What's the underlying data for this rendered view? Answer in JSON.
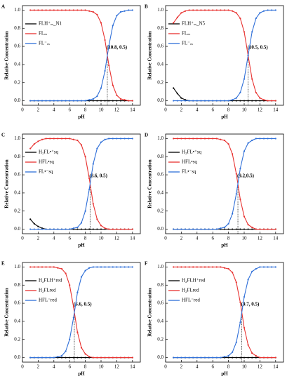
{
  "chart_data": [
    {
      "type": "line",
      "label": "A",
      "xlabel": "pH",
      "ylabel": "Relative Concentration",
      "xlim": [
        0,
        15
      ],
      "ylim": [
        -0.05,
        1.05
      ],
      "xticks": [
        0,
        2,
        4,
        6,
        8,
        10,
        12,
        14
      ],
      "yticks": [
        {
          "value": 0,
          "label": "0.0"
        },
        {
          "value": 0.2,
          "label": "0.2"
        },
        {
          "value": 0.4,
          "label": "0.4"
        },
        {
          "value": 0.6,
          "label": "0.6"
        },
        {
          "value": 0.8,
          "label": "0.8"
        },
        {
          "value": 1,
          "label": "1.0"
        }
      ],
      "annotation": {
        "text": "(10.8, 0.5)",
        "x": 10.8,
        "y": 0.5
      },
      "x": [
        1,
        1.5,
        2,
        2.5,
        3,
        3.5,
        4,
        4.5,
        5,
        5.5,
        6,
        6.5,
        7,
        7.5,
        8,
        8.5,
        9,
        9.5,
        10,
        10.5,
        11,
        11.5,
        12,
        12.5,
        13,
        13.5,
        14
      ],
      "series": [
        {
          "name": "FLH⁺ₒₓ_N1",
          "color": "#000000",
          "values": [
            0,
            0,
            0,
            0,
            0,
            0,
            0,
            0,
            0,
            0,
            0,
            0,
            0,
            0,
            0,
            0,
            0,
            0,
            0,
            0,
            0,
            0,
            0,
            0,
            0,
            0,
            0
          ]
        },
        {
          "name": "FLₒₓ",
          "color": "#e8312f",
          "values": [
            1,
            1,
            1,
            1,
            1,
            1,
            1,
            1,
            1,
            1,
            1,
            1,
            1,
            1,
            1,
            0.99,
            0.98,
            0.95,
            0.86,
            0.67,
            0.39,
            0.17,
            0.06,
            0.02,
            0.01,
            0,
            0
          ]
        },
        {
          "name": "FL⁻ₒₓ",
          "color": "#2f6fd8",
          "values": [
            0,
            0,
            0,
            0,
            0,
            0,
            0,
            0,
            0,
            0,
            0,
            0,
            0,
            0,
            0,
            0.01,
            0.02,
            0.05,
            0.14,
            0.33,
            0.61,
            0.83,
            0.94,
            0.98,
            0.99,
            1,
            1
          ]
        }
      ]
    },
    {
      "type": "line",
      "label": "B",
      "xlabel": "pH",
      "ylabel": "Relative Concentration",
      "xlim": [
        0,
        15
      ],
      "ylim": [
        -0.05,
        1.05
      ],
      "xticks": [
        0,
        2,
        4,
        6,
        8,
        10,
        12,
        14
      ],
      "yticks": [
        {
          "value": 0,
          "label": "0.0"
        },
        {
          "value": 0.2,
          "label": "0.2"
        },
        {
          "value": 0.4,
          "label": "0.4"
        },
        {
          "value": 0.6,
          "label": "0.6"
        },
        {
          "value": 0.8,
          "label": "0.8"
        },
        {
          "value": 1,
          "label": "1.0"
        }
      ],
      "annotation": {
        "text": "(10.5, 0.5)",
        "x": 10.5,
        "y": 0.5
      },
      "x": [
        1,
        1.5,
        2,
        2.5,
        3,
        3.5,
        4,
        4.5,
        5,
        5.5,
        6,
        6.5,
        7,
        7.5,
        8,
        8.5,
        9,
        9.5,
        10,
        10.5,
        11,
        11.5,
        12,
        12.5,
        13,
        13.5,
        14
      ],
      "series": [
        {
          "name": "FLH⁺ₒₓ_N5",
          "color": "#000000",
          "values": [
            0.14,
            0.08,
            0.03,
            0.01,
            0,
            0,
            0,
            0,
            0,
            0,
            0,
            0,
            0,
            0,
            0,
            0,
            0,
            0,
            0,
            0,
            0,
            0,
            0,
            0,
            0,
            0,
            0
          ]
        },
        {
          "name": "FLₒₓ",
          "color": "#e8312f",
          "values": [
            0.86,
            0.92,
            0.97,
            0.99,
            1,
            1,
            1,
            1,
            1,
            1,
            1,
            1,
            1,
            1,
            1,
            0.99,
            0.97,
            0.91,
            0.76,
            0.5,
            0.24,
            0.09,
            0.03,
            0.01,
            0,
            0,
            0
          ]
        },
        {
          "name": "FL⁻ₒₓ",
          "color": "#2f6fd8",
          "values": [
            0,
            0,
            0,
            0,
            0,
            0,
            0,
            0,
            0,
            0,
            0,
            0,
            0,
            0,
            0,
            0.01,
            0.03,
            0.09,
            0.24,
            0.5,
            0.76,
            0.91,
            0.97,
            0.99,
            1,
            1,
            1
          ]
        }
      ]
    },
    {
      "type": "line",
      "label": "C",
      "xlabel": "pH",
      "ylabel": "Relative Concentration",
      "xlim": [
        0,
        15
      ],
      "ylim": [
        -0.05,
        1.05
      ],
      "xticks": [
        0,
        2,
        4,
        6,
        8,
        10,
        12,
        14
      ],
      "yticks": [
        {
          "value": 0,
          "label": "0.0"
        },
        {
          "value": 0.2,
          "label": "0.2"
        },
        {
          "value": 0.4,
          "label": "0.4"
        },
        {
          "value": 0.6,
          "label": "0.6"
        },
        {
          "value": 0.8,
          "label": "0.8"
        },
        {
          "value": 1,
          "label": "1.0"
        }
      ],
      "annotation": {
        "text": "(8.6, 0.5)",
        "x": 8.6,
        "y": 0.5
      },
      "x": [
        1,
        1.5,
        2,
        2.5,
        3,
        3.5,
        4,
        4.5,
        5,
        5.5,
        6,
        6.5,
        7,
        7.5,
        8,
        8.5,
        9,
        9.5,
        10,
        10.5,
        11,
        11.5,
        12,
        12.5,
        13,
        13.5,
        14
      ],
      "series": [
        {
          "name": "H₂FL•⁺sq",
          "color": "#000000",
          "values": [
            0.11,
            0.06,
            0.03,
            0.01,
            0,
            0,
            0,
            0,
            0,
            0,
            0,
            0,
            0,
            0,
            0,
            0,
            0,
            0,
            0,
            0,
            0,
            0,
            0,
            0,
            0,
            0,
            0
          ]
        },
        {
          "name": "HFL•sq",
          "color": "#e8312f",
          "values": [
            0.89,
            0.94,
            0.97,
            0.99,
            1,
            1,
            1,
            1,
            1,
            1,
            1,
            0.99,
            0.98,
            0.93,
            0.8,
            0.56,
            0.28,
            0.11,
            0.04,
            0.01,
            0,
            0,
            0,
            0,
            0,
            0,
            0
          ]
        },
        {
          "name": "FL•⁻sq",
          "color": "#2f6fd8",
          "values": [
            0,
            0,
            0,
            0,
            0,
            0,
            0,
            0,
            0,
            0,
            0,
            0.01,
            0.02,
            0.07,
            0.2,
            0.44,
            0.72,
            0.89,
            0.96,
            0.99,
            1,
            1,
            1,
            1,
            1,
            1,
            1
          ]
        }
      ]
    },
    {
      "type": "line",
      "label": "D",
      "xlabel": "pH",
      "ylabel": "Relative Concentration",
      "xlim": [
        0,
        15
      ],
      "ylim": [
        -0.05,
        1.05
      ],
      "xticks": [
        0,
        2,
        4,
        6,
        8,
        10,
        12,
        14
      ],
      "yticks": [
        {
          "value": 0,
          "label": "0.0"
        },
        {
          "value": 0.2,
          "label": "0.2"
        },
        {
          "value": 0.4,
          "label": "0.4"
        },
        {
          "value": 0.6,
          "label": "0.6"
        },
        {
          "value": 0.8,
          "label": "0.8"
        },
        {
          "value": 1,
          "label": "1.0"
        }
      ],
      "annotation": {
        "text": "(9.2,0.5)",
        "x": 9.2,
        "y": 0.5
      },
      "x": [
        1,
        1.5,
        2,
        2.5,
        3,
        3.5,
        4,
        4.5,
        5,
        5.5,
        6,
        6.5,
        7,
        7.5,
        8,
        8.5,
        9,
        9.5,
        10,
        10.5,
        11,
        11.5,
        12,
        12.5,
        13,
        13.5,
        14
      ],
      "series": [
        {
          "name": "H₂FL•⁺sq",
          "color": "#000000",
          "values": [
            0,
            0,
            0,
            0,
            0,
            0,
            0,
            0,
            0,
            0,
            0,
            0,
            0,
            0,
            0,
            0,
            0,
            0,
            0,
            0,
            0,
            0,
            0,
            0,
            0,
            0,
            0
          ]
        },
        {
          "name": "HFL•sq",
          "color": "#e8312f",
          "values": [
            1,
            1,
            1,
            1,
            1,
            1,
            1,
            1,
            1,
            1,
            1,
            1,
            0.99,
            0.98,
            0.94,
            0.83,
            0.61,
            0.33,
            0.14,
            0.05,
            0.02,
            0,
            0,
            0,
            0,
            0,
            0
          ]
        },
        {
          "name": "FL•⁻sq",
          "color": "#2f6fd8",
          "values": [
            0,
            0,
            0,
            0,
            0,
            0,
            0,
            0,
            0,
            0,
            0,
            0,
            0.01,
            0.02,
            0.06,
            0.17,
            0.39,
            0.67,
            0.86,
            0.95,
            0.98,
            1,
            1,
            1,
            1,
            1,
            1
          ]
        }
      ]
    },
    {
      "type": "line",
      "label": "E",
      "xlabel": "pH",
      "ylabel": "Relative Concentration",
      "xlim": [
        0,
        15
      ],
      "ylim": [
        -0.05,
        1.05
      ],
      "xticks": [
        0,
        2,
        4,
        6,
        8,
        10,
        12,
        14
      ],
      "yticks": [
        {
          "value": 0,
          "label": "0.0"
        },
        {
          "value": 0.2,
          "label": "0.2"
        },
        {
          "value": 0.4,
          "label": "0.4"
        },
        {
          "value": 0.6,
          "label": "0.6"
        },
        {
          "value": 0.8,
          "label": "0.8"
        },
        {
          "value": 1,
          "label": "1.0"
        }
      ],
      "annotation": {
        "text": "(6.6, 0.5)",
        "x": 6.6,
        "y": 0.5
      },
      "x": [
        1,
        1.5,
        2,
        2.5,
        3,
        3.5,
        4,
        4.5,
        5,
        5.5,
        6,
        6.5,
        7,
        7.5,
        8,
        8.5,
        9,
        9.5,
        10,
        10.5,
        11,
        11.5,
        12,
        12.5,
        13,
        13.5,
        14
      ],
      "series": [
        {
          "name": "H₂FLH⁺red",
          "color": "#000000",
          "values": [
            0,
            0,
            0,
            0,
            0,
            0,
            0,
            0,
            0,
            0,
            0,
            0,
            0,
            0,
            0,
            0,
            0,
            0,
            0,
            0,
            0,
            0,
            0,
            0,
            0,
            0,
            0
          ]
        },
        {
          "name": "H₂FLred",
          "color": "#e8312f",
          "values": [
            1,
            1,
            1,
            1,
            1,
            1,
            1,
            0.99,
            0.98,
            0.93,
            0.8,
            0.56,
            0.28,
            0.11,
            0.04,
            0.01,
            0,
            0,
            0,
            0,
            0,
            0,
            0,
            0,
            0,
            0,
            0
          ]
        },
        {
          "name": "HFL⁻red",
          "color": "#2f6fd8",
          "values": [
            0,
            0,
            0,
            0,
            0,
            0,
            0,
            0.01,
            0.02,
            0.07,
            0.2,
            0.44,
            0.72,
            0.89,
            0.96,
            0.99,
            1,
            1,
            1,
            1,
            1,
            1,
            1,
            1,
            1,
            1,
            1
          ]
        }
      ]
    },
    {
      "type": "line",
      "label": "F",
      "xlabel": "pH",
      "ylabel": "Relative Concentration",
      "xlim": [
        0,
        15
      ],
      "ylim": [
        -0.05,
        1.05
      ],
      "xticks": [
        0,
        2,
        4,
        6,
        8,
        10,
        12,
        14
      ],
      "yticks": [
        {
          "value": 0,
          "label": "0.0"
        },
        {
          "value": 0.2,
          "label": "0.2"
        },
        {
          "value": 0.4,
          "label": "0.4"
        },
        {
          "value": 0.6,
          "label": "0.6"
        },
        {
          "value": 0.8,
          "label": "0.8"
        },
        {
          "value": 1,
          "label": "1.0"
        }
      ],
      "annotation": {
        "text": "(9.7, 0.5)",
        "x": 9.7,
        "y": 0.5
      },
      "x": [
        1,
        1.5,
        2,
        2.5,
        3,
        3.5,
        4,
        4.5,
        5,
        5.5,
        6,
        6.5,
        7,
        7.5,
        8,
        8.5,
        9,
        9.5,
        10,
        10.5,
        11,
        11.5,
        12,
        12.5,
        13,
        13.5,
        14
      ],
      "series": [
        {
          "name": "H₂FLH⁺red",
          "color": "#000000",
          "values": [
            0,
            0,
            0,
            0,
            0,
            0,
            0,
            0,
            0,
            0,
            0,
            0,
            0,
            0,
            0,
            0,
            0,
            0,
            0,
            0,
            0,
            0,
            0,
            0,
            0,
            0,
            0
          ]
        },
        {
          "name": "H₂FLred",
          "color": "#e8312f",
          "values": [
            1,
            1,
            1,
            1,
            1,
            1,
            1,
            1,
            1,
            1,
            1,
            1,
            1,
            0.99,
            0.98,
            0.94,
            0.83,
            0.61,
            0.33,
            0.14,
            0.05,
            0.02,
            0,
            0,
            0,
            0,
            0
          ]
        },
        {
          "name": "HFL⁻red",
          "color": "#2f6fd8",
          "values": [
            0,
            0,
            0,
            0,
            0,
            0,
            0,
            0,
            0,
            0,
            0,
            0,
            0,
            0.01,
            0.02,
            0.06,
            0.17,
            0.39,
            0.67,
            0.86,
            0.95,
            0.98,
            1,
            1,
            1,
            1,
            1
          ]
        }
      ]
    }
  ]
}
